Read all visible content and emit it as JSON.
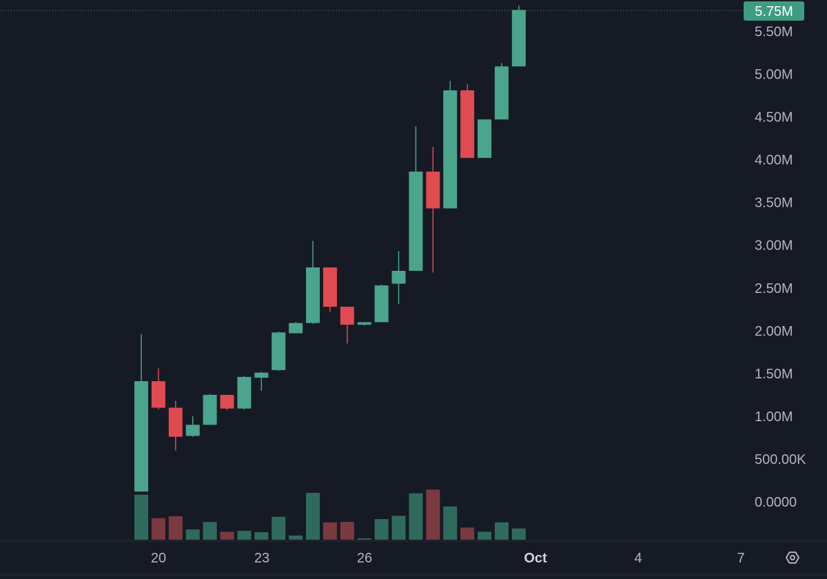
{
  "colors": {
    "background": "#161a25",
    "up": "#4aa58c",
    "down": "#e04a51",
    "up_volume": "#2f6b5d",
    "down_volume": "#7a3a40",
    "axis_text": "#b2b5be",
    "last_price_bg": "#3f9c82"
  },
  "icons": {
    "settings": "settings-icon"
  },
  "last_price_label": "5.75M",
  "chart_data": {
    "type": "candlestick",
    "title": "",
    "y_axis": {
      "scale": "linear",
      "ticks": [
        {
          "value": 5500000,
          "label": "5.50M"
        },
        {
          "value": 5000000,
          "label": "5.00M"
        },
        {
          "value": 4500000,
          "label": "4.50M"
        },
        {
          "value": 4000000,
          "label": "4.00M"
        },
        {
          "value": 3500000,
          "label": "3.50M"
        },
        {
          "value": 3000000,
          "label": "3.00M"
        },
        {
          "value": 2500000,
          "label": "2.50M"
        },
        {
          "value": 2000000,
          "label": "2.00M"
        },
        {
          "value": 1500000,
          "label": "1.50M"
        },
        {
          "value": 1000000,
          "label": "1.00M"
        },
        {
          "value": 500000,
          "label": "500.00K"
        },
        {
          "value": 0,
          "label": "0.0000"
        }
      ]
    },
    "x_axis": {
      "ticks": [
        {
          "label": "20",
          "bold": false
        },
        {
          "label": "23",
          "bold": false
        },
        {
          "label": "26",
          "bold": false
        },
        {
          "label": "Oct",
          "bold": true
        },
        {
          "label": "4",
          "bold": false
        },
        {
          "label": "7",
          "bold": false
        }
      ]
    },
    "last_price": 5750000,
    "candles": [
      {
        "open": 120000,
        "high": 1960000,
        "low": 120000,
        "close": 1410000
      },
      {
        "open": 1410000,
        "high": 1560000,
        "low": 1080000,
        "close": 1100000
      },
      {
        "open": 1100000,
        "high": 1180000,
        "low": 600000,
        "close": 760000
      },
      {
        "open": 770000,
        "high": 1000000,
        "low": 760000,
        "close": 900000
      },
      {
        "open": 900000,
        "high": 1260000,
        "low": 900000,
        "close": 1250000
      },
      {
        "open": 1250000,
        "high": 1250000,
        "low": 1070000,
        "close": 1090000
      },
      {
        "open": 1090000,
        "high": 1470000,
        "low": 1080000,
        "close": 1460000
      },
      {
        "open": 1450000,
        "high": 1520000,
        "low": 1300000,
        "close": 1510000
      },
      {
        "open": 1540000,
        "high": 1990000,
        "low": 1530000,
        "close": 1980000
      },
      {
        "open": 1970000,
        "high": 2100000,
        "low": 1970000,
        "close": 2090000
      },
      {
        "open": 2090000,
        "high": 3050000,
        "low": 2080000,
        "close": 2740000
      },
      {
        "open": 2740000,
        "high": 2740000,
        "low": 2220000,
        "close": 2280000
      },
      {
        "open": 2280000,
        "high": 2280000,
        "low": 1850000,
        "close": 2070000
      },
      {
        "open": 2070000,
        "high": 2100000,
        "low": 2060000,
        "close": 2100000
      },
      {
        "open": 2100000,
        "high": 2540000,
        "low": 2100000,
        "close": 2530000
      },
      {
        "open": 2550000,
        "high": 2930000,
        "low": 2310000,
        "close": 2700000
      },
      {
        "open": 2700000,
        "high": 4390000,
        "low": 2700000,
        "close": 3860000
      },
      {
        "open": 3860000,
        "high": 4150000,
        "low": 2680000,
        "close": 3430000
      },
      {
        "open": 3430000,
        "high": 4920000,
        "low": 3430000,
        "close": 4810000
      },
      {
        "open": 4810000,
        "high": 4880000,
        "low": 4020000,
        "close": 4020000
      },
      {
        "open": 4020000,
        "high": 4470000,
        "low": 4020000,
        "close": 4470000
      },
      {
        "open": 4470000,
        "high": 5130000,
        "low": 4470000,
        "close": 5090000
      },
      {
        "open": 5090000,
        "high": 5800000,
        "low": 5090000,
        "close": 5750000
      }
    ],
    "volume": [
      {
        "value": 0.96,
        "dir": "up"
      },
      {
        "value": 0.46,
        "dir": "down"
      },
      {
        "value": 0.5,
        "dir": "down"
      },
      {
        "value": 0.22,
        "dir": "up"
      },
      {
        "value": 0.38,
        "dir": "up"
      },
      {
        "value": 0.17,
        "dir": "down"
      },
      {
        "value": 0.19,
        "dir": "up"
      },
      {
        "value": 0.16,
        "dir": "up"
      },
      {
        "value": 0.49,
        "dir": "up"
      },
      {
        "value": 0.09,
        "dir": "up"
      },
      {
        "value": 1.0,
        "dir": "up"
      },
      {
        "value": 0.37,
        "dir": "down"
      },
      {
        "value": 0.38,
        "dir": "down"
      },
      {
        "value": 0.03,
        "dir": "up"
      },
      {
        "value": 0.44,
        "dir": "up"
      },
      {
        "value": 0.51,
        "dir": "up"
      },
      {
        "value": 0.99,
        "dir": "up"
      },
      {
        "value": 1.07,
        "dir": "down"
      },
      {
        "value": 0.71,
        "dir": "up"
      },
      {
        "value": 0.26,
        "dir": "down"
      },
      {
        "value": 0.17,
        "dir": "up"
      },
      {
        "value": 0.37,
        "dir": "up"
      },
      {
        "value": 0.24,
        "dir": "up"
      }
    ]
  }
}
